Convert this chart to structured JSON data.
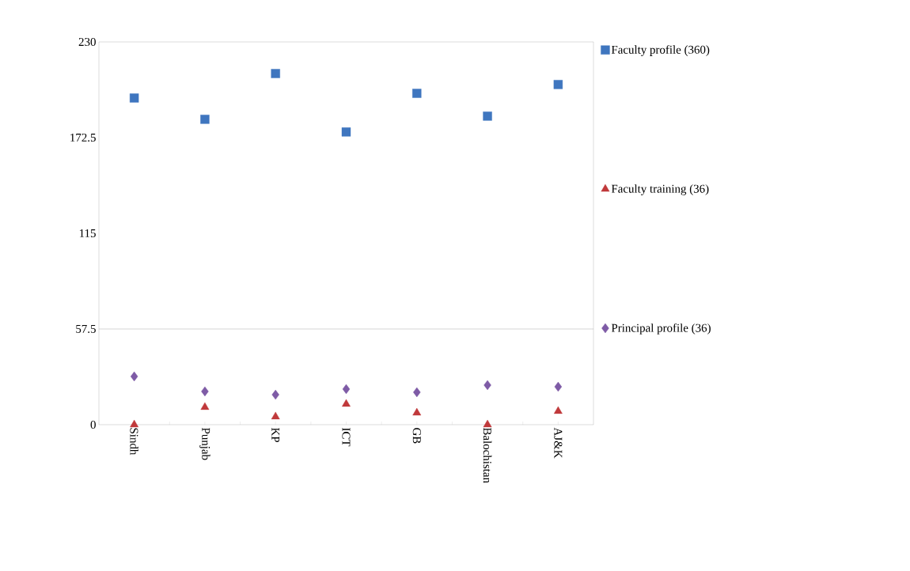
{
  "chart_data": {
    "type": "scatter",
    "categories": [
      "Sindh",
      "Punjab",
      "KP",
      "ICT",
      "GB",
      "Balochistan",
      "AJ&K"
    ],
    "series": [
      {
        "name": "Faculty profile (360)",
        "color": "#3f76bf",
        "marker": "square",
        "values": [
          196.3,
          183.5,
          211,
          175.9,
          199.1,
          185.4,
          204.4
        ]
      },
      {
        "name": "Faculty training (36)",
        "color": "#c0393b",
        "marker": "triangle",
        "values": [
          0,
          10.5,
          4.8,
          12.4,
          7.1,
          0,
          8.1
        ]
      },
      {
        "name": "Principal profile (36)",
        "color": "#7e5ba6",
        "marker": "diamond",
        "values": [
          29,
          20,
          18,
          21.4,
          19.5,
          23.8,
          22.8
        ]
      }
    ],
    "ylim": [
      0,
      230
    ],
    "yticks": [
      0,
      57.5,
      115,
      172.5,
      230
    ],
    "ref_lines": [
      {
        "axis": "y",
        "value": 57.5,
        "color": "#9a9a9a"
      }
    ],
    "legend": "right"
  }
}
